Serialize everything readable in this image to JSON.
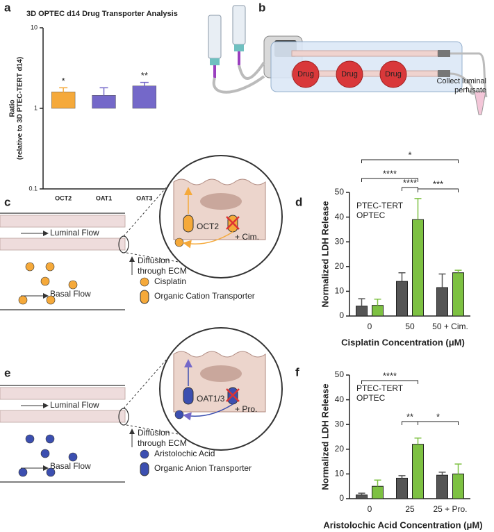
{
  "panel_labels": [
    "a",
    "b",
    "c",
    "d",
    "e",
    "f"
  ],
  "chart_data": [
    {
      "type": "bar",
      "title": "3D OPTEC d14 Drug Transporter Analysis",
      "ylabel": [
        "Ratio",
        "(relative to 3D PTEC-TERT d14)"
      ],
      "categories": [
        "OCT2",
        "OAT1",
        "OAT3"
      ],
      "values": [
        1.6,
        1.45,
        1.9
      ],
      "errors": [
        0.2,
        0.35,
        0.2
      ],
      "colors": [
        "#f5a93a",
        "#7468c9",
        "#7468c9"
      ],
      "ylim": [
        0.1,
        10
      ],
      "yticks": [
        0.1,
        1,
        10
      ],
      "log": true,
      "annotations": [
        {
          "text": "*",
          "x": "OCT2"
        },
        {
          "text": "**",
          "x": "OAT3"
        }
      ]
    },
    {
      "type": "grouped-bar",
      "xlabel": "Cisplatin Concentration (μM)",
      "ylabel": "Normalized LDH Release",
      "categories": [
        "0",
        "50",
        "50 + Cim."
      ],
      "series": [
        {
          "name": "PTEC-TERT",
          "color": "#555555",
          "values": [
            4,
            14,
            11.5
          ],
          "errors": [
            3,
            3.5,
            5.5
          ]
        },
        {
          "name": "OPTEC",
          "color": "#7dc142",
          "values": [
            4.3,
            39,
            17.5
          ],
          "errors": [
            2.5,
            8.5,
            1
          ]
        }
      ],
      "ylim": [
        0,
        50
      ],
      "yticks": [
        0,
        10,
        20,
        30,
        40,
        50
      ],
      "legend": "upper left",
      "annotations": [
        "*",
        "****",
        "****",
        "***"
      ]
    },
    {
      "type": "grouped-bar",
      "xlabel": "Aristolochic Acid Concentration (μM)",
      "ylabel": "Normalized LDH Release",
      "categories": [
        "0",
        "25",
        "25 + Pro."
      ],
      "series": [
        {
          "name": "PTEC-TERT",
          "color": "#555555",
          "values": [
            1.5,
            8.3,
            9.5
          ],
          "errors": [
            0.7,
            1,
            1.2
          ]
        },
        {
          "name": "OPTEC",
          "color": "#7dc142",
          "values": [
            5,
            22,
            10
          ],
          "errors": [
            2.5,
            2.5,
            4
          ]
        }
      ],
      "ylim": [
        0,
        50
      ],
      "yticks": [
        0,
        10,
        20,
        30,
        40,
        50
      ],
      "legend": "upper left",
      "annotations": [
        "****",
        "**",
        "*"
      ]
    }
  ],
  "diagram_b": {
    "drugs": [
      "Drug",
      "Drug",
      "Drug"
    ],
    "collect": [
      "Collect luminal",
      "perfusate"
    ]
  },
  "diagram_c": {
    "luminal": "Luminal Flow",
    "diffusion": [
      "Diffusion",
      "through ECM"
    ],
    "basal": "Basal Flow",
    "transporter": "OCT2",
    "inhibitor": "+ Cim.",
    "legend": [
      "Cisplatin",
      "Organic Cation Transporter"
    ]
  },
  "diagram_e": {
    "luminal": "Luminal Flow",
    "diffusion": [
      "Diffusion",
      "through ECM"
    ],
    "basal": "Basal Flow",
    "transporter": "OAT1/3",
    "inhibitor": "+ Pro.",
    "legend": [
      "Aristolochic Acid",
      "Organic Anion Transporter"
    ]
  }
}
